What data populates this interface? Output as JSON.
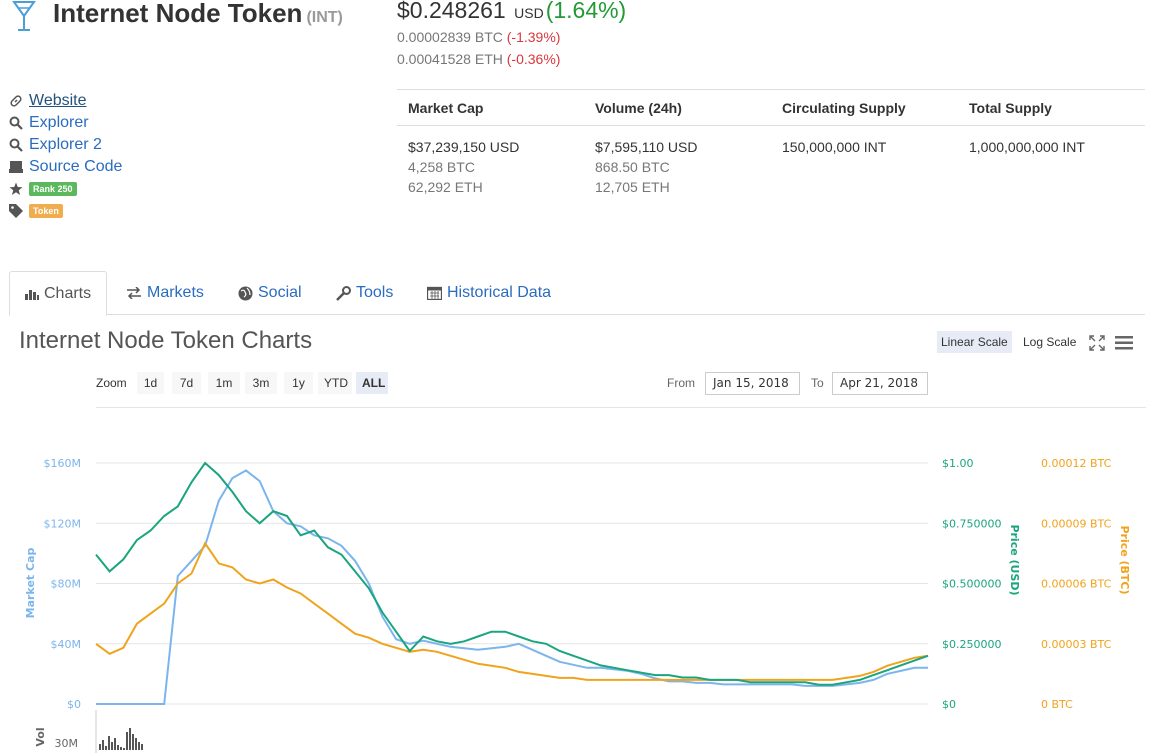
{
  "header": {
    "name": "Internet Node Token",
    "symbol": "(INT)",
    "price_usd": "$0.248261",
    "currency": "USD",
    "change_usd": "(1.64%)",
    "price_btc": "0.00002839 BTC",
    "change_btc": "(-1.39%)",
    "price_eth": "0.00041528 ETH",
    "change_eth": "(-0.36%)"
  },
  "links": {
    "website": "Website",
    "explorer": "Explorer",
    "explorer2": "Explorer 2",
    "source": "Source Code",
    "rank": "Rank 250",
    "type": "Token"
  },
  "stats": {
    "headers": [
      "Market Cap",
      "Volume (24h)",
      "Circulating Supply",
      "Total Supply"
    ],
    "market_cap": [
      "$37,239,150 USD",
      "4,258 BTC",
      "62,292 ETH"
    ],
    "volume": [
      "$7,595,110 USD",
      "868.50 BTC",
      "12,705 ETH"
    ],
    "circulating": "150,000,000 INT",
    "total": "1,000,000,000 INT"
  },
  "tabs": [
    "Charts",
    "Markets",
    "Social",
    "Tools",
    "Historical Data"
  ],
  "chart_panel": {
    "title": "Internet Node Token Charts",
    "linear": "Linear Scale",
    "log": "Log Scale",
    "zoom_label": "Zoom",
    "zoom": [
      "1d",
      "7d",
      "1m",
      "3m",
      "1y",
      "YTD",
      "ALL"
    ],
    "from_label": "From",
    "from": "Jan 15, 2018",
    "to_label": "To",
    "to": "Apr 21, 2018"
  },
  "colors": {
    "mcap": "#7cb5ec",
    "usd": "#1aa57e",
    "btc": "#f0a31c"
  },
  "chart_data": {
    "type": "line",
    "yaxes": {
      "left": {
        "label": "Market Cap",
        "ticks": [
          "$0",
          "$40M",
          "$80M",
          "$120M",
          "$160M"
        ],
        "range": [
          0,
          160000000
        ]
      },
      "right_usd": {
        "label": "Price (USD)",
        "ticks": [
          "$0",
          "$0.250000",
          "$0.500000",
          "$0.750000",
          "$1.00"
        ],
        "range": [
          0,
          1
        ]
      },
      "right_btc": {
        "label": "Price (BTC)",
        "ticks": [
          "0 BTC",
          "0.00003 BTC",
          "0.00006 BTC",
          "0.00009 BTC",
          "0.00012 BTC"
        ],
        "range": [
          0,
          0.00012
        ]
      }
    },
    "volume_axis": {
      "label": "Vol",
      "tick": "30M"
    },
    "series": [
      {
        "name": "Market Cap",
        "values": [
          0,
          0,
          0,
          0,
          0,
          0,
          85,
          95,
          105,
          135,
          150,
          155,
          148,
          128,
          120,
          118,
          112,
          110,
          105,
          95,
          80,
          58,
          43,
          40,
          42,
          40,
          38,
          37,
          36,
          37,
          38,
          40,
          36,
          32,
          28,
          26,
          24,
          24,
          23,
          22,
          20,
          17,
          15,
          15,
          14,
          14,
          13,
          13,
          13,
          13,
          13,
          13,
          12,
          12,
          12,
          13,
          14,
          16,
          20,
          22,
          24,
          24
        ]
      },
      {
        "name": "Price (USD)",
        "values": [
          0.62,
          0.55,
          0.6,
          0.68,
          0.72,
          0.78,
          0.82,
          0.92,
          1.0,
          0.95,
          0.88,
          0.8,
          0.75,
          0.8,
          0.78,
          0.7,
          0.72,
          0.65,
          0.62,
          0.55,
          0.48,
          0.38,
          0.3,
          0.22,
          0.28,
          0.26,
          0.25,
          0.26,
          0.28,
          0.3,
          0.3,
          0.28,
          0.26,
          0.25,
          0.22,
          0.2,
          0.18,
          0.16,
          0.15,
          0.14,
          0.13,
          0.12,
          0.12,
          0.11,
          0.11,
          0.1,
          0.1,
          0.1,
          0.09,
          0.09,
          0.09,
          0.09,
          0.09,
          0.08,
          0.08,
          0.09,
          0.1,
          0.12,
          0.14,
          0.16,
          0.18,
          0.2
        ]
      },
      {
        "name": "Price (BTC)",
        "values": [
          3e-05,
          2.5e-05,
          2.8e-05,
          4e-05,
          4.5e-05,
          5e-05,
          6e-05,
          6.5e-05,
          8e-05,
          7e-05,
          6.8e-05,
          6.2e-05,
          6e-05,
          6.2e-05,
          5.8e-05,
          5.5e-05,
          5e-05,
          4.5e-05,
          4e-05,
          3.5e-05,
          3.3e-05,
          3e-05,
          2.8e-05,
          2.6e-05,
          2.7e-05,
          2.6e-05,
          2.4e-05,
          2.2e-05,
          2e-05,
          1.9e-05,
          1.8e-05,
          1.6e-05,
          1.5e-05,
          1.4e-05,
          1.3e-05,
          1.3e-05,
          1.2e-05,
          1.2e-05,
          1.2e-05,
          1.2e-05,
          1.2e-05,
          1.2e-05,
          1.2e-05,
          1.2e-05,
          1.2e-05,
          1.2e-05,
          1.2e-05,
          1.2e-05,
          1.2e-05,
          1.2e-05,
          1.2e-05,
          1.2e-05,
          1.2e-05,
          1.2e-05,
          1.2e-05,
          1.3e-05,
          1.4e-05,
          1.6e-05,
          1.9e-05,
          2.1e-05,
          2.3e-05,
          2.4e-05
        ]
      }
    ]
  }
}
